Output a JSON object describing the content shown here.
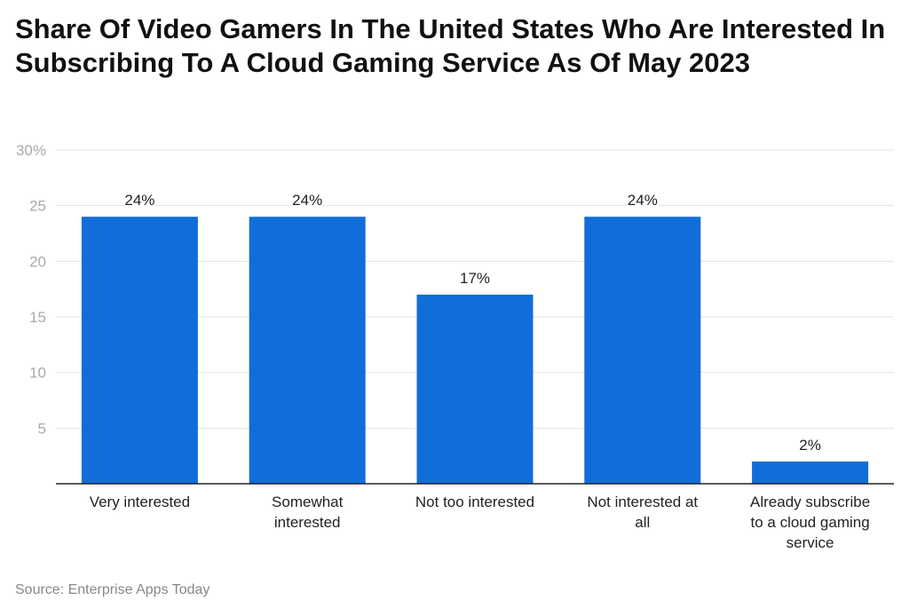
{
  "chart_data": {
    "type": "bar",
    "title": "Share Of Video Gamers In The United States Who Are Interested In Subscribing To A Cloud Gaming Service As Of May 2023",
    "categories": [
      "Very interested",
      "Somewhat interested",
      "Not too interested",
      "Not interested at all",
      "Already subscribe to a cloud gaming service"
    ],
    "category_lines": [
      [
        "Very interested"
      ],
      [
        "Somewhat",
        "interested"
      ],
      [
        "Not too interested"
      ],
      [
        "Not interested at all",
        "all"
      ],
      [
        "Already subscribe",
        "to a cloud gaming",
        "service"
      ]
    ],
    "values": [
      24,
      24,
      17,
      24,
      2
    ],
    "data_labels": [
      "24%",
      "24%",
      "17%",
      "24%",
      "2%"
    ],
    "ylim": [
      0,
      30
    ],
    "yticks": [
      5,
      10,
      15,
      20,
      25,
      30
    ],
    "ytick_labels": [
      "5",
      "10",
      "15",
      "20",
      "25",
      "30%"
    ],
    "grid": true,
    "bar_color": "#116dd9",
    "xlabel": "",
    "ylabel": ""
  },
  "source": "Source: Enterprise Apps Today"
}
